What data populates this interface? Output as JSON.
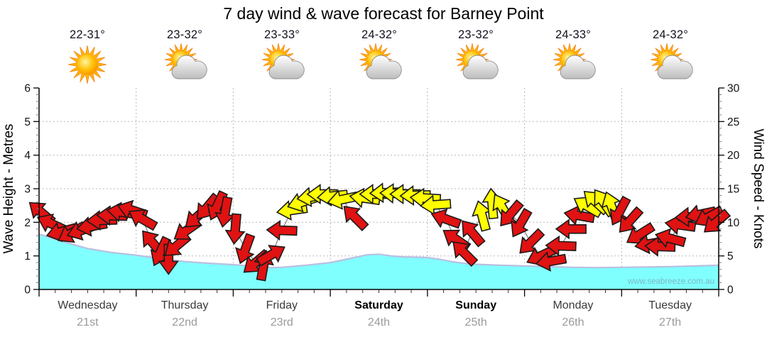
{
  "title": "7 day wind & wave forecast for Barney Point",
  "watermark": "www.seabreeze.com.au",
  "days": [
    {
      "name": "Wednesday",
      "date": "21st",
      "temp": "22-31°",
      "icon": "sunny",
      "weekend": false
    },
    {
      "name": "Thursday",
      "date": "22nd",
      "temp": "23-32°",
      "icon": "partly-cloudy",
      "weekend": false
    },
    {
      "name": "Friday",
      "date": "23rd",
      "temp": "23-33°",
      "icon": "partly-cloudy",
      "weekend": false
    },
    {
      "name": "Saturday",
      "date": "24th",
      "temp": "24-32°",
      "icon": "partly-cloudy",
      "weekend": true
    },
    {
      "name": "Sunday",
      "date": "25th",
      "temp": "23-32°",
      "icon": "partly-cloudy",
      "weekend": true
    },
    {
      "name": "Monday",
      "date": "26th",
      "temp": "24-33°",
      "icon": "partly-cloudy",
      "weekend": false
    },
    {
      "name": "Tuesday",
      "date": "27th",
      "temp": "24-32°",
      "icon": "partly-cloudy",
      "weekend": false
    }
  ],
  "axes": {
    "left_title": "Wave Height - Metres",
    "left_ticks": [
      0,
      1,
      2,
      3,
      4,
      5,
      6
    ],
    "left_range": [
      0,
      6
    ],
    "right_title": "Wind Speed - Knots",
    "right_ticks": [
      0,
      5,
      10,
      15,
      20,
      25,
      30
    ],
    "right_range": [
      0,
      30
    ]
  },
  "colors": {
    "background": "#ffffff",
    "wave_fill": "#80ffff",
    "wave_edge": "#b9bfe0",
    "arrow_red": "#e01212",
    "arrow_yellow": "#ffff00",
    "arrow_outline": "#1a1a1a",
    "wind_line": "#909090",
    "grid": "#b8b8b8",
    "axis_line": "#000000",
    "day_label": "#3a3a3a",
    "weekend_label": "#000000",
    "date_label": "#9a9a9a",
    "watermark": "#7aaebc"
  },
  "chart_data": {
    "type": "area+wind-arrows",
    "title": "7 day wind & wave forecast for Barney Point",
    "x_unit": "hours from Wednesday 00:00 (24 h per day, 0-168 total)",
    "ylabel_left": "Wave Height - Metres",
    "ylabel_right": "Wind Speed - Knots",
    "ylim_left": [
      0,
      6
    ],
    "ylim_right": [
      0,
      30
    ],
    "grid": "dotted, 1 m / 5 kn horizontal, daily vertical",
    "wave_height_m": {
      "t": [
        0,
        6,
        12,
        18,
        24,
        30,
        36,
        42,
        48,
        54,
        57,
        60,
        66,
        72,
        78,
        81,
        84,
        87,
        90,
        96,
        99,
        102,
        105,
        108,
        114,
        120,
        126,
        132,
        138,
        144,
        150,
        156,
        162,
        168
      ],
      "v": [
        1.65,
        1.42,
        1.22,
        1.1,
        1.02,
        0.92,
        0.83,
        0.78,
        0.74,
        0.68,
        0.65,
        0.66,
        0.72,
        0.8,
        0.95,
        1.03,
        1.05,
        1.0,
        0.97,
        0.95,
        0.9,
        0.83,
        0.78,
        0.75,
        0.72,
        0.7,
        0.68,
        0.66,
        0.65,
        0.66,
        0.67,
        0.68,
        0.7,
        0.72
      ]
    },
    "arrow_format": "[hour, wind_knots, direction_deg (0=pointing right, 90=down, 180=left, negative=up), color r=red y=yellow]",
    "wind_arrows": [
      [
        0.5,
        11.5,
        -140,
        "r"
      ],
      [
        3,
        9.8,
        -155,
        "r"
      ],
      [
        5.5,
        8.6,
        165,
        "r"
      ],
      [
        8,
        8.4,
        150,
        "r"
      ],
      [
        10.5,
        8.8,
        160,
        "r"
      ],
      [
        13,
        9.4,
        170,
        "r"
      ],
      [
        15.5,
        10.3,
        178,
        "r"
      ],
      [
        18,
        11,
        182,
        "r"
      ],
      [
        20.5,
        11.5,
        -172,
        "r"
      ],
      [
        23,
        11.8,
        -162,
        "r"
      ],
      [
        25.5,
        10.5,
        -150,
        "r"
      ],
      [
        28,
        7,
        -130,
        "r"
      ],
      [
        30,
        5.6,
        115,
        "r"
      ],
      [
        32,
        4.5,
        90,
        "r"
      ],
      [
        34,
        6.5,
        140,
        "r"
      ],
      [
        36.5,
        8.8,
        145,
        "r"
      ],
      [
        39,
        10.8,
        138,
        "r"
      ],
      [
        41.5,
        12.2,
        130,
        "r"
      ],
      [
        44,
        12.4,
        115,
        "r"
      ],
      [
        46,
        11.5,
        100,
        "r"
      ],
      [
        48.5,
        9,
        95,
        "r"
      ],
      [
        51,
        6,
        110,
        "r"
      ],
      [
        53.5,
        4,
        140,
        "r"
      ],
      [
        55.5,
        3.6,
        -80,
        "r"
      ],
      [
        57.5,
        5.2,
        -30,
        "r"
      ],
      [
        60,
        8.8,
        182,
        "r"
      ],
      [
        62.5,
        11.8,
        172,
        "y"
      ],
      [
        65,
        13,
        162,
        "y"
      ],
      [
        67.5,
        13.8,
        172,
        "y"
      ],
      [
        70,
        14.2,
        180,
        "y"
      ],
      [
        72.5,
        13.9,
        174,
        "y"
      ],
      [
        75,
        13.4,
        168,
        "y"
      ],
      [
        78,
        10.8,
        -135,
        "r"
      ],
      [
        80.5,
        13.6,
        -172,
        "y"
      ],
      [
        83,
        14.2,
        180,
        "y"
      ],
      [
        85.5,
        14.4,
        178,
        "y"
      ],
      [
        88,
        14.3,
        182,
        "y"
      ],
      [
        90.5,
        14.2,
        180,
        "y"
      ],
      [
        93,
        14,
        178,
        "y"
      ],
      [
        95.5,
        13.6,
        183,
        "y"
      ],
      [
        98,
        12.6,
        176,
        "y"
      ],
      [
        100.5,
        10.5,
        -160,
        "r"
      ],
      [
        103,
        7.5,
        -145,
        "r"
      ],
      [
        105,
        5.5,
        -135,
        "r"
      ],
      [
        107,
        8.5,
        -130,
        "r"
      ],
      [
        109.5,
        11,
        -105,
        "y"
      ],
      [
        112,
        12.8,
        -95,
        "y"
      ],
      [
        114.5,
        12.2,
        -120,
        "y"
      ],
      [
        116.5,
        11.2,
        130,
        "r"
      ],
      [
        119,
        9.8,
        120,
        "r"
      ],
      [
        121.5,
        7,
        135,
        "r"
      ],
      [
        124,
        5,
        155,
        "r"
      ],
      [
        126.5,
        4.2,
        170,
        "r"
      ],
      [
        129,
        6.5,
        182,
        "r"
      ],
      [
        131.5,
        9,
        180,
        "r"
      ],
      [
        133.5,
        11,
        -170,
        "r"
      ],
      [
        135.5,
        12.4,
        -150,
        "y"
      ],
      [
        137.5,
        13.1,
        -138,
        "y"
      ],
      [
        139.5,
        13,
        -125,
        "y"
      ],
      [
        141.5,
        12.4,
        -110,
        "y"
      ],
      [
        143.5,
        11.6,
        118,
        "r"
      ],
      [
        146,
        10.2,
        132,
        "r"
      ],
      [
        148.5,
        8.2,
        148,
        "r"
      ],
      [
        151,
        6.8,
        170,
        "r"
      ],
      [
        153.5,
        6.4,
        182,
        "r"
      ],
      [
        156,
        7.6,
        -165,
        "r"
      ],
      [
        158.5,
        9.6,
        -172,
        "r"
      ],
      [
        161,
        10.8,
        178,
        "r"
      ],
      [
        163.5,
        11.2,
        168,
        "r"
      ],
      [
        165.5,
        10.8,
        152,
        "r"
      ],
      [
        167.3,
        10,
        140,
        "r"
      ]
    ]
  }
}
